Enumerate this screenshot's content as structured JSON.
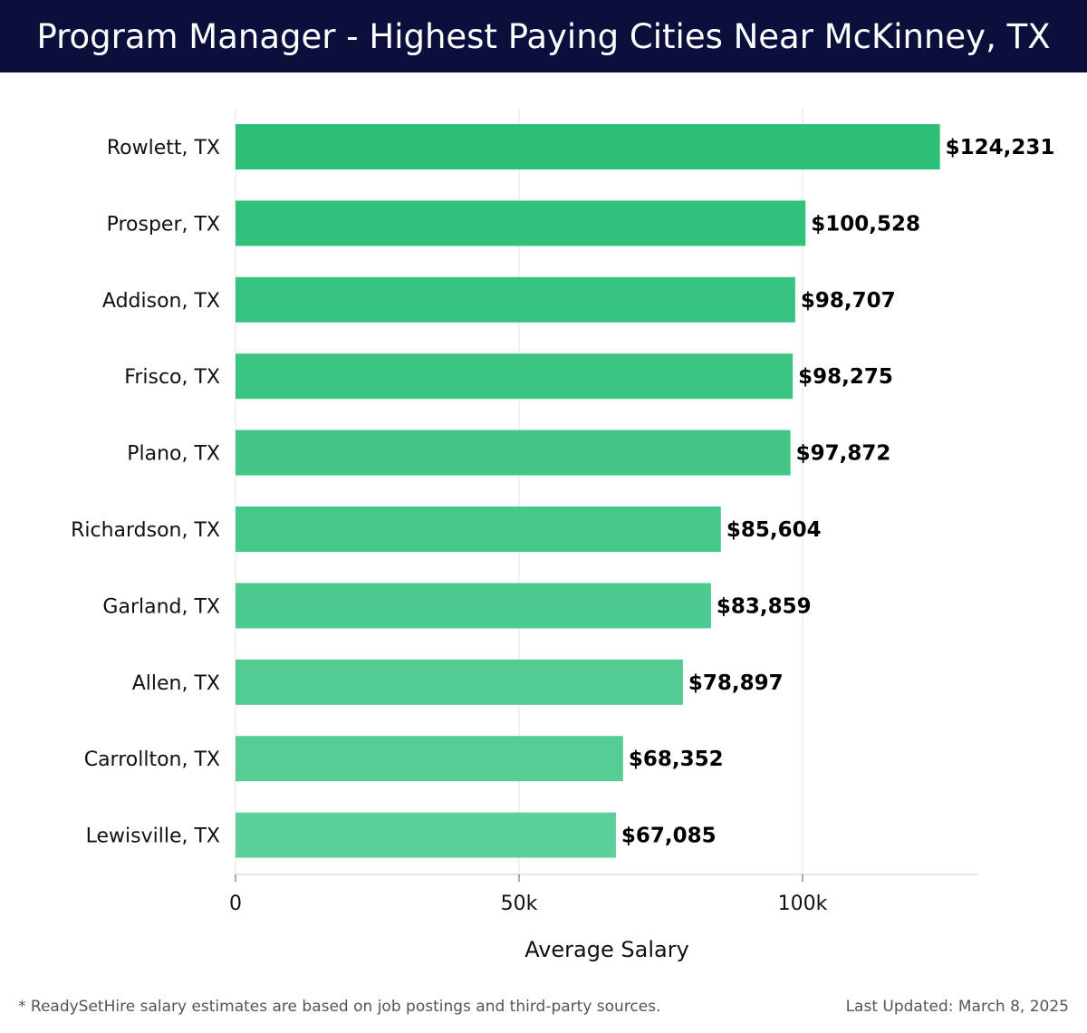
{
  "header": {
    "title": "Program Manager - Highest Paying Cities Near McKinney, TX"
  },
  "footer": {
    "note": "* ReadySetHire salary estimates are based on job postings and third-party sources.",
    "updated": "Last Updated: March 8, 2025"
  },
  "colors": {
    "header_bg": "#0b0f3b",
    "bar_dark": "#2bbf78",
    "bar_light": "#5ccf9a",
    "grid": "#e3e3e3"
  },
  "chart_data": {
    "type": "bar",
    "orientation": "horizontal",
    "title": "Program Manager - Highest Paying Cities Near McKinney, TX",
    "xlabel": "Average Salary",
    "ylabel": "",
    "xlim": [
      0,
      131000
    ],
    "xticks": [
      0,
      50000,
      100000
    ],
    "xtick_labels": [
      "0",
      "50k",
      "100k"
    ],
    "grid": "vertical",
    "categories": [
      "Rowlett, TX",
      "Prosper, TX",
      "Addison, TX",
      "Frisco, TX",
      "Plano, TX",
      "Richardson, TX",
      "Garland, TX",
      "Allen, TX",
      "Carrollton, TX",
      "Lewisville, TX"
    ],
    "values": [
      124231,
      100528,
      98707,
      98275,
      97872,
      85604,
      83859,
      78897,
      68352,
      67085
    ],
    "value_labels": [
      "$124,231",
      "$100,528",
      "$98,707",
      "$98,275",
      "$97,872",
      "$85,604",
      "$83,859",
      "$78,897",
      "$68,352",
      "$67,085"
    ]
  }
}
